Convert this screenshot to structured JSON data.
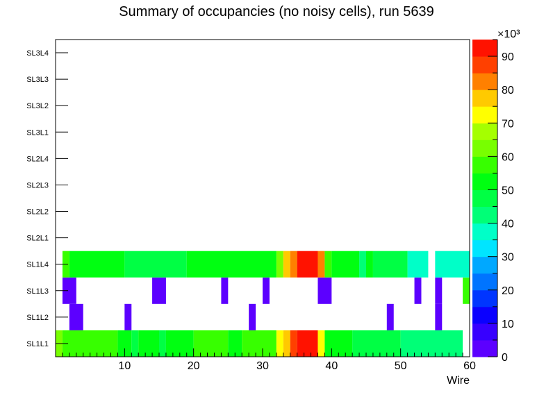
{
  "chart_data": {
    "type": "heatmap",
    "title": "Summary of occupancies (no noisy cells), run 5639",
    "xlabel": "Wire",
    "ylabel": "",
    "xlim": [
      0,
      60
    ],
    "x_ticks": [
      "10",
      "20",
      "30",
      "40",
      "50",
      "60"
    ],
    "y_labels": [
      "SL1L1",
      "SL1L2",
      "SL1L3",
      "SL1L4",
      "SL2L1",
      "SL2L2",
      "SL2L3",
      "SL2L4",
      "SL3L1",
      "SL3L2",
      "SL3L3",
      "SL3L4"
    ],
    "colorbar": {
      "min": 0,
      "max": 95,
      "multiplier": "×10³",
      "ticks": [
        "0",
        "10",
        "20",
        "30",
        "40",
        "50",
        "60",
        "70",
        "80",
        "90"
      ],
      "colors": [
        "#5C00FF",
        "#3700FF",
        "#0A00FF",
        "#0035FF",
        "#0074FF",
        "#00A8FF",
        "#00E5FF",
        "#00FFC8",
        "#00FF77",
        "#00FF44",
        "#00FF11",
        "#37FF00",
        "#78FF00",
        "#A5FF00",
        "#FFFF00",
        "#FFCA00",
        "#FF8000",
        "#FF4000",
        "#FF1200"
      ]
    },
    "rows": [
      {
        "layer": "SL1L1",
        "segments": [
          [
            0,
            1,
            60
          ],
          [
            1,
            9,
            57
          ],
          [
            9,
            11,
            53
          ],
          [
            11,
            12,
            46
          ],
          [
            12,
            15,
            53
          ],
          [
            15,
            16,
            46
          ],
          [
            16,
            20,
            53
          ],
          [
            20,
            25,
            57
          ],
          [
            25,
            27,
            53
          ],
          [
            27,
            32,
            56
          ],
          [
            32,
            33,
            70
          ],
          [
            33,
            34,
            79
          ],
          [
            34,
            35,
            88
          ],
          [
            35,
            38,
            93
          ],
          [
            38,
            39,
            71
          ],
          [
            39,
            43,
            52
          ],
          [
            43,
            50,
            46
          ],
          [
            50,
            59,
            43
          ]
        ]
      },
      {
        "layer": "SL1L2",
        "segments": [
          [
            2,
            4,
            2
          ],
          [
            10,
            11,
            2
          ],
          [
            28,
            29,
            2
          ],
          [
            48,
            49,
            2
          ],
          [
            55,
            56,
            2
          ]
        ]
      },
      {
        "layer": "SL1L3",
        "segments": [
          [
            1,
            3,
            3
          ],
          [
            14,
            16,
            3
          ],
          [
            24,
            25,
            3
          ],
          [
            30,
            31,
            3
          ],
          [
            38,
            40,
            3
          ],
          [
            52,
            53,
            3
          ],
          [
            55,
            56,
            3
          ],
          [
            59,
            60,
            55
          ]
        ]
      },
      {
        "layer": "SL1L4",
        "segments": [
          [
            1,
            2,
            57
          ],
          [
            2,
            10,
            54
          ],
          [
            10,
            19,
            46
          ],
          [
            19,
            32,
            52
          ],
          [
            32,
            33,
            64
          ],
          [
            33,
            34,
            75
          ],
          [
            34,
            35,
            84
          ],
          [
            35,
            38,
            93
          ],
          [
            38,
            39,
            84
          ],
          [
            39,
            40,
            58
          ],
          [
            40,
            44,
            50
          ],
          [
            44,
            45,
            44
          ],
          [
            45,
            46,
            50
          ],
          [
            46,
            51,
            46
          ],
          [
            51,
            54,
            37
          ],
          [
            55,
            60,
            35
          ]
        ]
      },
      {
        "layer": "SL2L1",
        "segments": []
      },
      {
        "layer": "SL2L2",
        "segments": []
      },
      {
        "layer": "SL2L3",
        "segments": []
      },
      {
        "layer": "SL2L4",
        "segments": []
      },
      {
        "layer": "SL3L1",
        "segments": []
      },
      {
        "layer": "SL3L2",
        "segments": []
      },
      {
        "layer": "SL3L3",
        "segments": []
      },
      {
        "layer": "SL3L4",
        "segments": []
      }
    ]
  }
}
